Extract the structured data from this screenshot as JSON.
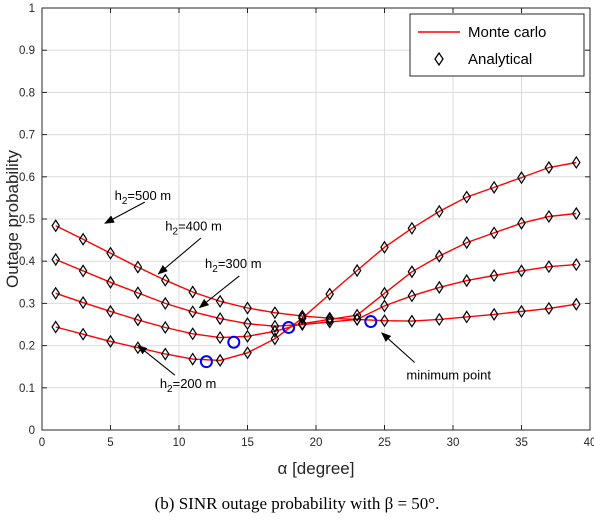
{
  "chart_data": {
    "type": "line",
    "title": "",
    "xlabel": "α [degree]",
    "ylabel": "Outage probability",
    "xlim": [
      0,
      40
    ],
    "ylim": [
      0,
      1
    ],
    "xticks": [
      0,
      5,
      10,
      15,
      20,
      25,
      30,
      35,
      40
    ],
    "yticks": [
      0,
      0.1,
      0.2,
      0.3,
      0.4,
      0.5,
      0.6,
      0.7,
      0.8,
      0.9,
      1
    ],
    "grid": true,
    "legend_position": "top-right",
    "legend": [
      {
        "label": "Monte carlo",
        "style": "line",
        "color": "#ff0000"
      },
      {
        "label": "Analytical",
        "style": "diamond",
        "color": "#000000"
      }
    ],
    "x": [
      1,
      3,
      5,
      7,
      9,
      11,
      13,
      15,
      17,
      19,
      21,
      23,
      25,
      27,
      29,
      31,
      33,
      35,
      37,
      39
    ],
    "series": [
      {
        "h2": "h2=500 m",
        "values": [
          0.484,
          0.452,
          0.419,
          0.386,
          0.355,
          0.327,
          0.305,
          0.289,
          0.278,
          0.27,
          0.265,
          0.262,
          0.259,
          0.258,
          0.262,
          0.268,
          0.274,
          0.281,
          0.288,
          0.298
        ]
      },
      {
        "h2": "h2=400 m",
        "values": [
          0.404,
          0.377,
          0.35,
          0.325,
          0.3,
          0.28,
          0.264,
          0.252,
          0.246,
          0.25,
          0.256,
          0.262,
          0.294,
          0.318,
          0.338,
          0.354,
          0.366,
          0.377,
          0.387,
          0.392
        ]
      },
      {
        "h2": "h2=300 m",
        "values": [
          0.324,
          0.302,
          0.281,
          0.261,
          0.243,
          0.228,
          0.219,
          0.222,
          0.234,
          0.252,
          0.262,
          0.272,
          0.324,
          0.375,
          0.412,
          0.444,
          0.467,
          0.49,
          0.506,
          0.513
        ]
      },
      {
        "h2": "h2=200 m",
        "values": [
          0.244,
          0.227,
          0.21,
          0.195,
          0.18,
          0.168,
          0.165,
          0.183,
          0.216,
          0.265,
          0.322,
          0.378,
          0.433,
          0.478,
          0.518,
          0.552,
          0.575,
          0.598,
          0.622,
          0.634
        ]
      }
    ],
    "minimum_points": [
      {
        "x": 12,
        "y": 0.162
      },
      {
        "x": 14,
        "y": 0.208
      },
      {
        "x": 18,
        "y": 0.243
      },
      {
        "x": 24,
        "y": 0.257
      }
    ],
    "annotations": [
      {
        "label": "h",
        "sub": "2",
        "rest": "=500 m",
        "x": 5.3,
        "y": 0.545,
        "arrow_from": [
          7.5,
          0.54
        ],
        "arrow_to": [
          4.6,
          0.49
        ]
      },
      {
        "label": "h",
        "sub": "2",
        "rest": "=400 m",
        "x": 9.0,
        "y": 0.473,
        "arrow_from": [
          11.6,
          0.455
        ],
        "arrow_to": [
          8.5,
          0.37
        ]
      },
      {
        "label": "h",
        "sub": "2",
        "rest": "=300 m",
        "x": 11.9,
        "y": 0.384,
        "arrow_from": [
          14.4,
          0.365
        ],
        "arrow_to": [
          11.5,
          0.29
        ]
      },
      {
        "label": "h",
        "sub": "2",
        "rest": "=200 m",
        "x": 8.6,
        "y": 0.1,
        "arrow_from": [
          9.7,
          0.13
        ],
        "arrow_to": [
          7.0,
          0.2
        ]
      },
      {
        "label": "minimum point",
        "x": 26.6,
        "y": 0.12,
        "arrow_from": [
          27.2,
          0.16
        ],
        "arrow_to": [
          24.8,
          0.23
        ]
      }
    ]
  },
  "caption": "(b) SINR outage probability with β = 50°."
}
